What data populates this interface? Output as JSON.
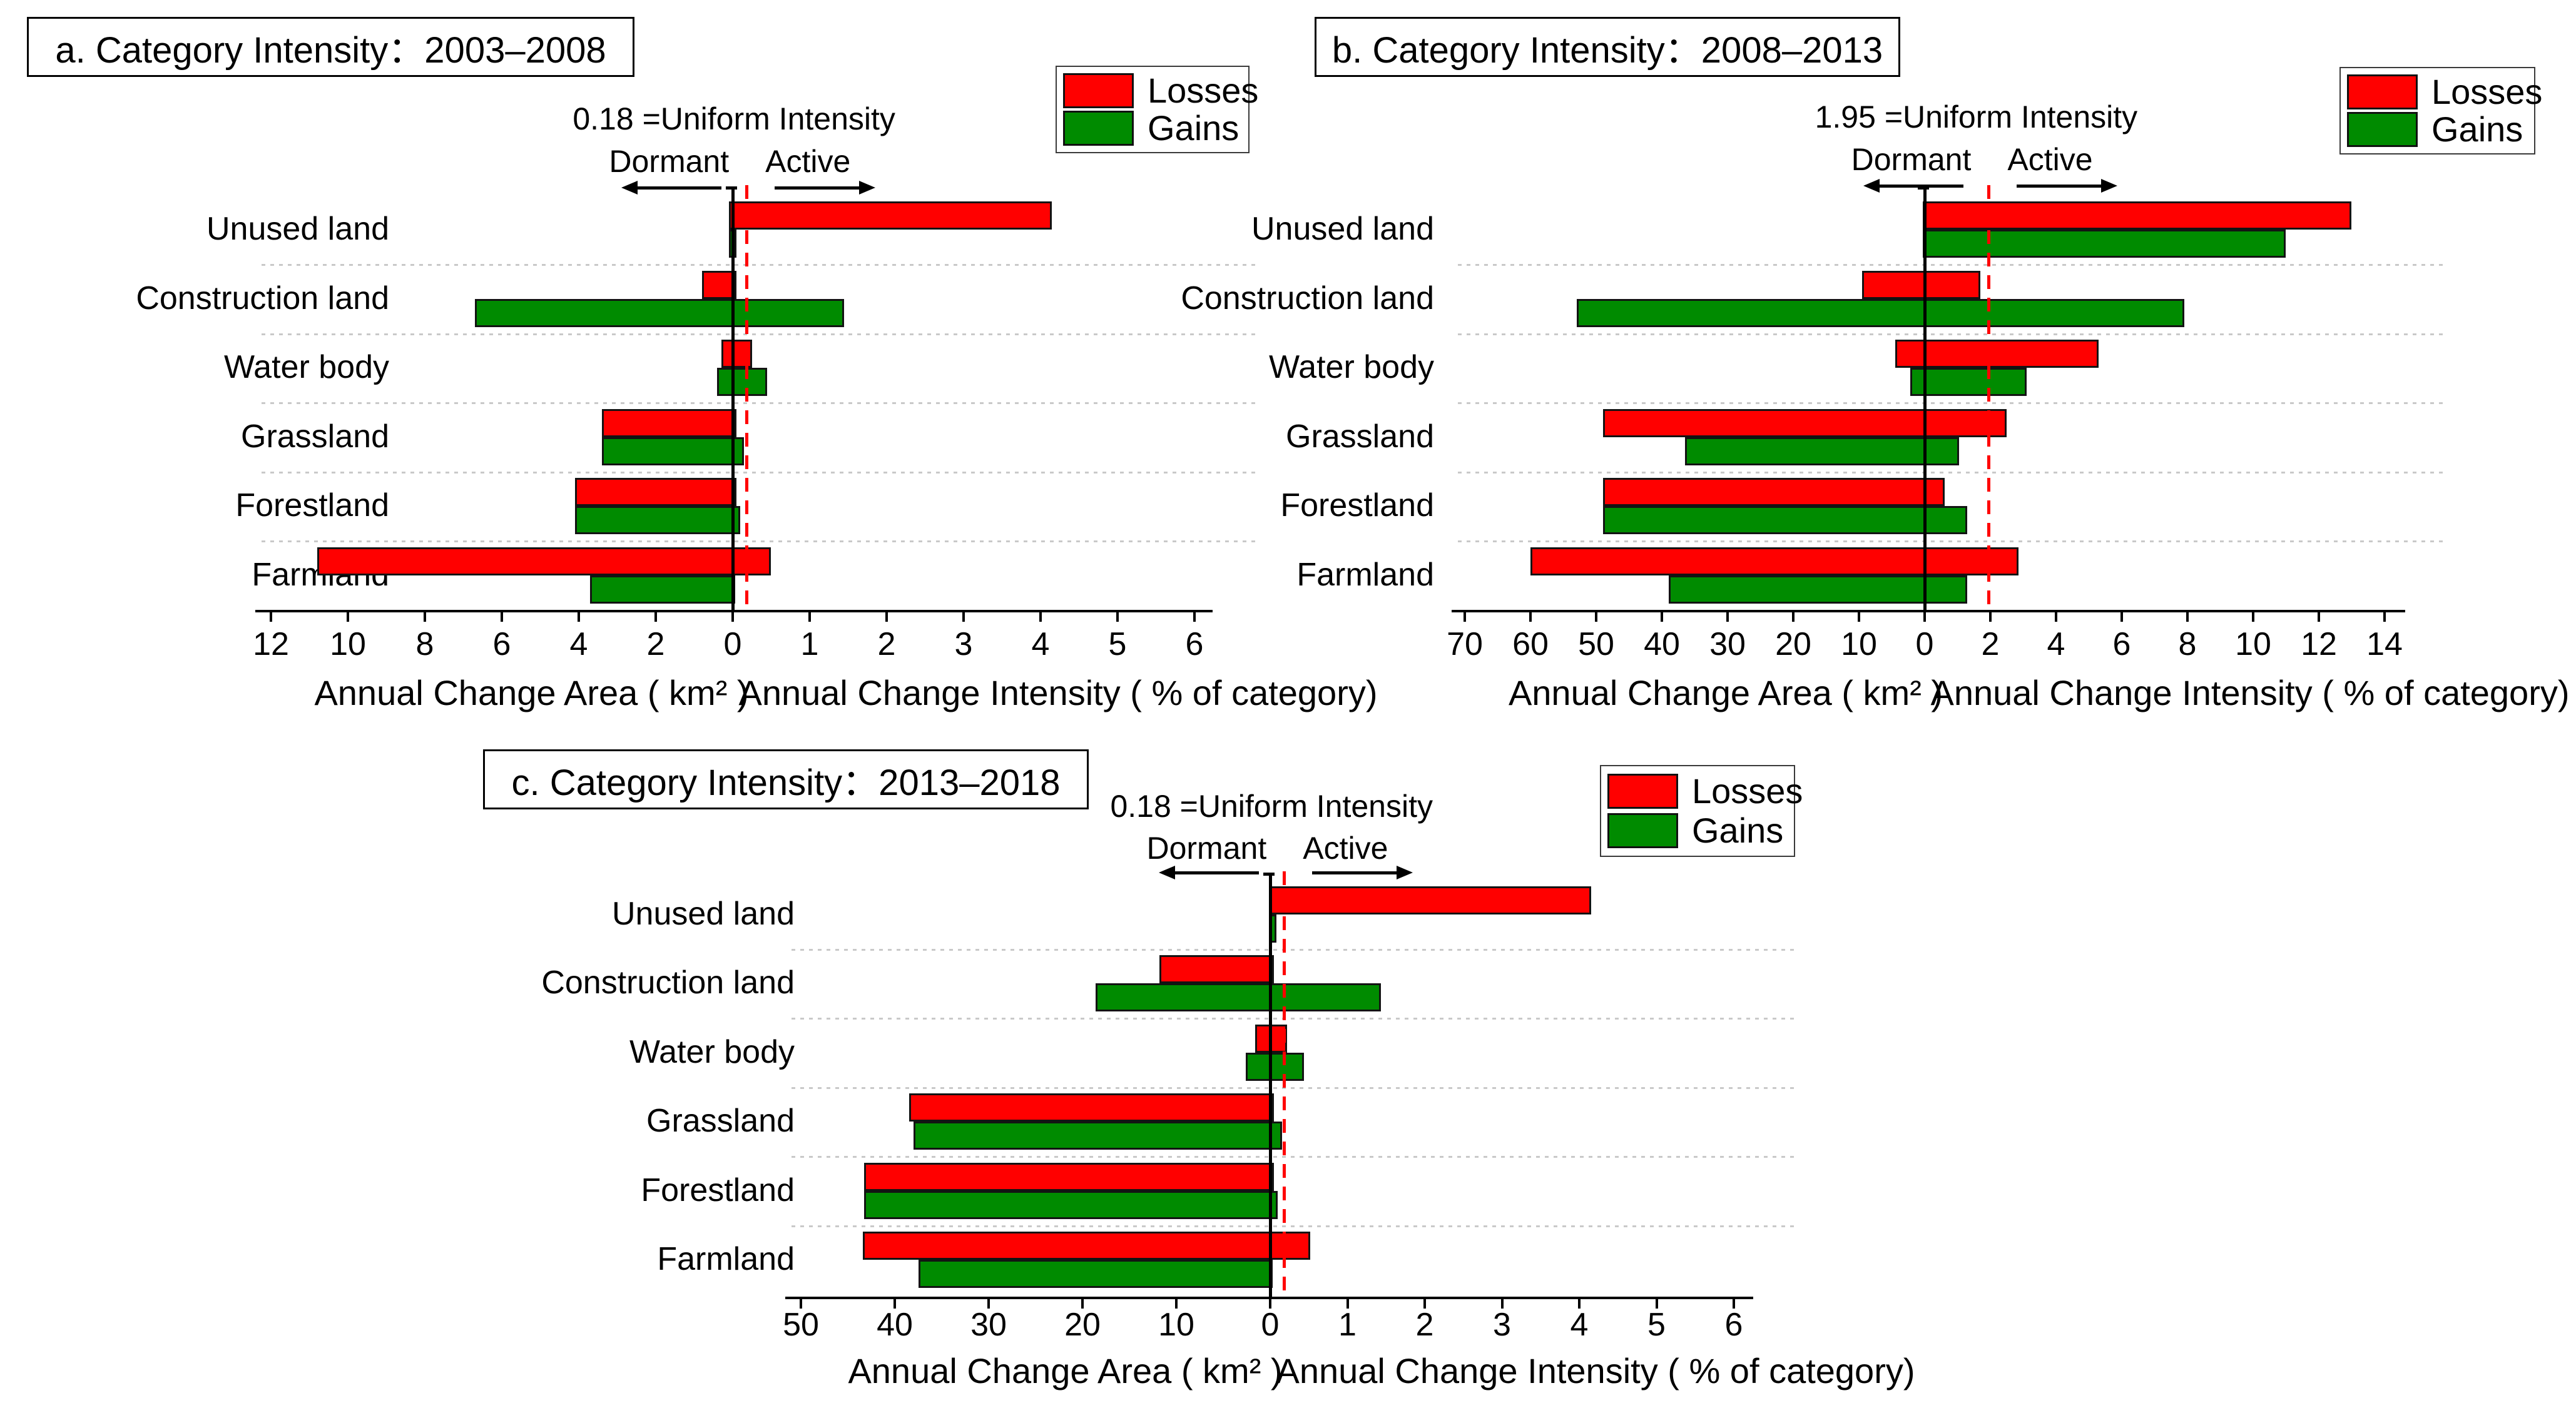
{
  "colors": {
    "losses": "#ff0000",
    "gains": "#008b00",
    "uniform_line": "#ff0000",
    "axis": "#000000",
    "separator": "#c9c9c9"
  },
  "chart_data": [
    {
      "type": "bar",
      "id": "a",
      "title": "a. Category Intensity：2003–2008",
      "uniform_label": "0.18 =Uniform Intensity",
      "uniform_value": 0.18,
      "dormant_label": "Dormant",
      "active_label": "Active",
      "legend": {
        "losses": "Losses",
        "gains": "Gains"
      },
      "xlabel_area": "Annual Change Area ( km² )",
      "xlabel_intensity": "Annual Change Intensity ( % of category)",
      "categories": [
        "Unused land",
        "Construction land",
        "Water body",
        "Grassland",
        "Forestland",
        "Farmland"
      ],
      "left_ticks": [
        12,
        10,
        8,
        6,
        4,
        2,
        0
      ],
      "right_ticks": [
        1,
        2,
        3,
        4,
        5,
        6
      ],
      "area_axis_range": [
        0,
        12
      ],
      "intensity_axis_range": [
        0,
        6
      ],
      "series": {
        "loss_area_km2": [
          0.1,
          0.8,
          0.3,
          3.4,
          4.1,
          10.8
        ],
        "gain_area_km2": [
          0.1,
          6.7,
          0.4,
          3.4,
          4.1,
          3.7
        ],
        "loss_intensity_pct": [
          4.15,
          0.05,
          0.25,
          0.05,
          0.05,
          0.5
        ],
        "gain_intensity_pct": [
          0.05,
          1.45,
          0.45,
          0.15,
          0.1,
          0.03
        ]
      }
    },
    {
      "type": "bar",
      "id": "b",
      "title": "b. Category Intensity：2008–2013",
      "uniform_label": "1.95 =Uniform Intensity",
      "uniform_value": 1.95,
      "dormant_label": "Dormant",
      "active_label": "Active",
      "legend": {
        "losses": "Losses",
        "gains": "Gains"
      },
      "xlabel_area": "Annual Change Area ( km² )",
      "xlabel_intensity": "Annual Change Intensity ( % of category)",
      "categories": [
        "Unused land",
        "Construction land",
        "Water body",
        "Grassland",
        "Forestland",
        "Farmland"
      ],
      "left_ticks": [
        70,
        60,
        50,
        40,
        30,
        20,
        10,
        0
      ],
      "right_ticks": [
        2,
        4,
        6,
        8,
        10,
        12,
        14
      ],
      "area_axis_range": [
        0,
        70
      ],
      "intensity_axis_range": [
        0,
        14
      ],
      "series": {
        "loss_area_km2": [
          0.3,
          9.5,
          4.5,
          49,
          49,
          60
        ],
        "gain_area_km2": [
          0.3,
          53,
          2.2,
          36.5,
          49,
          39
        ],
        "loss_intensity_pct": [
          13.0,
          1.7,
          5.3,
          2.5,
          0.6,
          2.85
        ],
        "gain_intensity_pct": [
          11.0,
          7.9,
          3.1,
          1.05,
          1.3,
          1.3
        ]
      }
    },
    {
      "type": "bar",
      "id": "c",
      "title": "c. Category Intensity：2013–2018",
      "uniform_label": "0.18 =Uniform Intensity",
      "uniform_value": 0.18,
      "dormant_label": "Dormant",
      "active_label": "Active",
      "legend": {
        "losses": "Losses",
        "gains": "Gains"
      },
      "xlabel_area": "Annual Change Area ( km² )",
      "xlabel_intensity": "Annual Change Intensity ( % of category)",
      "categories": [
        "Unused land",
        "Construction land",
        "Water body",
        "Grassland",
        "Forestland",
        "Farmland"
      ],
      "left_ticks": [
        50,
        40,
        30,
        20,
        10,
        0
      ],
      "right_ticks": [
        1,
        2,
        3,
        4,
        5,
        6
      ],
      "area_axis_range": [
        0,
        50
      ],
      "intensity_axis_range": [
        0,
        6
      ],
      "series": {
        "loss_area_km2": [
          0.1,
          11.8,
          1.6,
          38.5,
          43.3,
          43.4
        ],
        "gain_area_km2": [
          0.1,
          18.6,
          2.6,
          38.0,
          43.3,
          37.5
        ],
        "loss_intensity_pct": [
          4.15,
          0.05,
          0.22,
          0.05,
          0.05,
          0.52
        ],
        "gain_intensity_pct": [
          0.08,
          1.43,
          0.44,
          0.15,
          0.1,
          0.03
        ]
      }
    }
  ]
}
